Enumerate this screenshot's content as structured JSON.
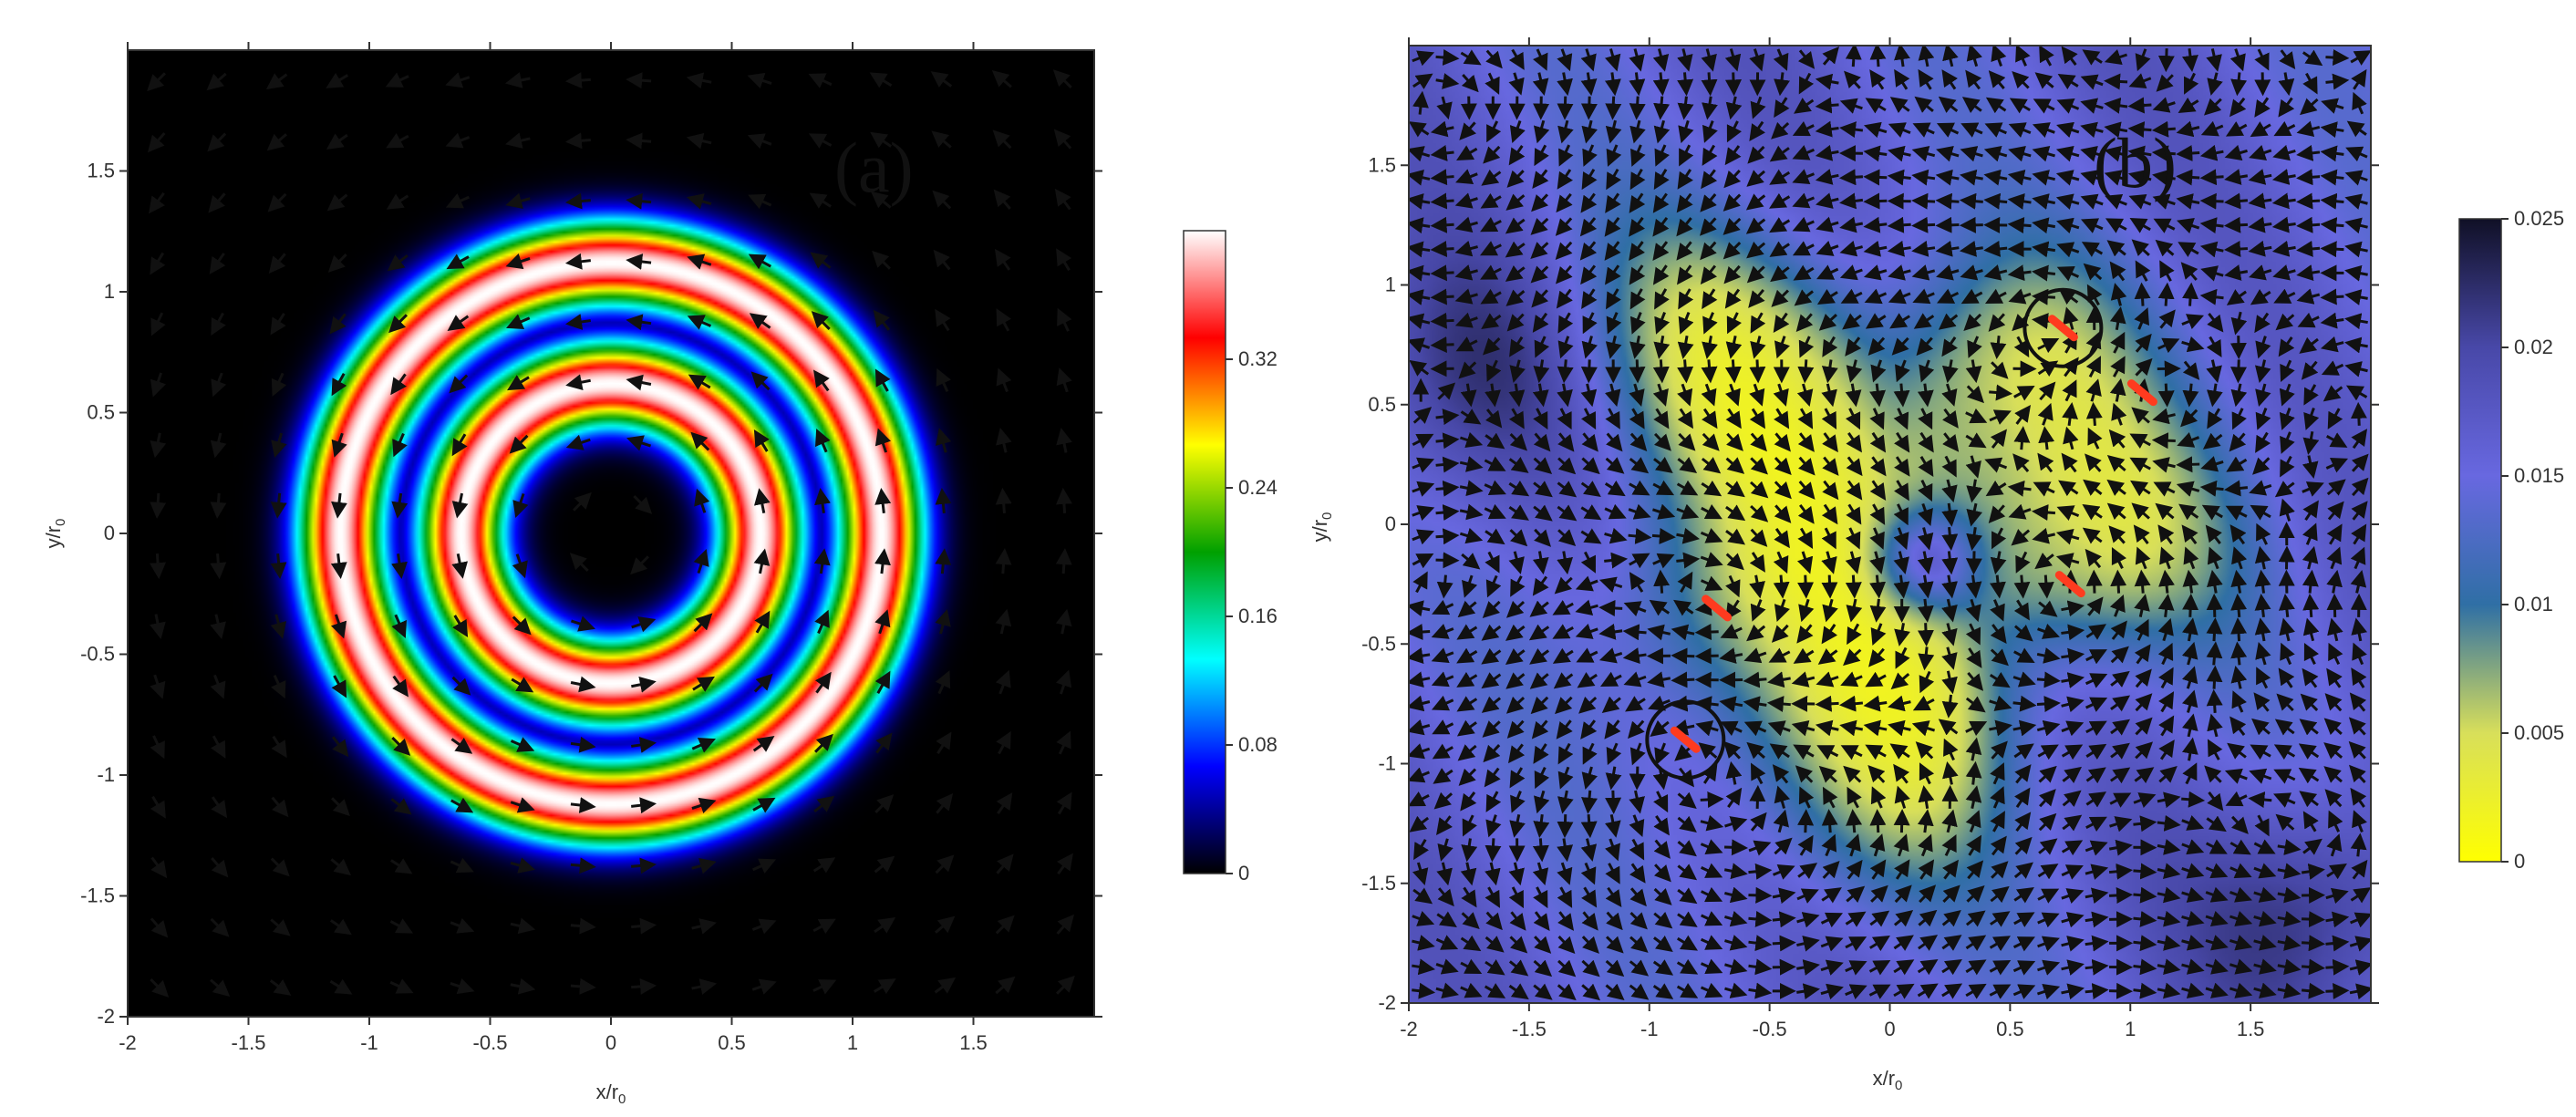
{
  "chart_data": [
    {
      "type": "heatmap",
      "panel_label": "(a)",
      "xlabel": "x/r",
      "xlabel_sub": "0",
      "ylabel": "y/r",
      "ylabel_sub": "0",
      "xlim": [
        -2,
        2
      ],
      "ylim": [
        -2,
        2
      ],
      "x_ticks": [
        -2,
        -1.5,
        -1,
        -0.5,
        0,
        0.5,
        1,
        1.5
      ],
      "x_tick_labels": [
        "-2",
        "-1.5",
        "-1",
        "-0.5",
        "0",
        "0.5",
        "1",
        "1.5"
      ],
      "y_ticks": [
        -2,
        -1.5,
        -1,
        -0.5,
        0,
        0.5,
        1,
        1.5
      ],
      "y_tick_labels": [
        "-2",
        "-1.5",
        "-1",
        "-0.5",
        "0",
        "0.5",
        "1",
        "1.5"
      ],
      "colorbar": {
        "range": [
          0,
          0.4
        ],
        "ticks": [
          0,
          0.08,
          0.16,
          0.24,
          0.32
        ],
        "tick_labels": [
          "0",
          "0.08",
          "0.16",
          "0.24",
          "0.32"
        ],
        "colormap": [
          "#000000",
          "#0000ff",
          "#00ffff",
          "#00a000",
          "#ffff00",
          "#ff0000",
          "#ffffff"
        ]
      },
      "field": {
        "description_type": "concentric rings",
        "ring_peaks_r": [
          0.62,
          1.12
        ],
        "ring_width": 0.17,
        "ring_amplitude": 0.4,
        "rotation": "counterclockwise",
        "vector_grid_step": 0.25
      }
    },
    {
      "type": "heatmap",
      "panel_label": "(b)",
      "xlabel": "x/r",
      "xlabel_sub": "0",
      "ylabel": "y/r",
      "ylabel_sub": "0",
      "xlim": [
        -2,
        2
      ],
      "ylim": [
        -2,
        2
      ],
      "x_ticks": [
        -2,
        -1.5,
        -1,
        -0.5,
        0,
        0.5,
        1,
        1.5
      ],
      "x_tick_labels": [
        "-2",
        "-1.5",
        "-1",
        "-0.5",
        "0",
        "0.5",
        "1",
        "1.5"
      ],
      "y_ticks": [
        -2,
        -1.5,
        -1,
        -0.5,
        0,
        0.5,
        1,
        1.5
      ],
      "y_tick_labels": [
        "-2",
        "-1.5",
        "-1",
        "-0.5",
        "0",
        "0.5",
        "1",
        "1.5"
      ],
      "colorbar": {
        "range": [
          0,
          0.025
        ],
        "ticks": [
          0,
          0.005,
          0.01,
          0.015,
          0.02,
          0.025
        ],
        "tick_labels": [
          "0",
          "0.005",
          "0.01",
          "0.015",
          "0.02",
          "0.025"
        ],
        "colormap": [
          "#ffff00",
          "#d8df5a",
          "#2f6fa5",
          "#6868e0",
          "#4848a8",
          "#101026"
        ]
      },
      "field": {
        "description_type": "irregular low-intensity region with central hole",
        "low_region_radius": 1.15,
        "central_hole": {
          "x": 0.15,
          "y": -0.15,
          "r": 0.22
        },
        "vortices": [
          {
            "x": 0.72,
            "y": 0.82,
            "circled": true
          },
          {
            "x": 1.05,
            "y": 0.55,
            "circled": false
          },
          {
            "x": 0.75,
            "y": -0.25,
            "circled": false
          },
          {
            "x": -0.72,
            "y": -0.35,
            "circled": false
          },
          {
            "x": -0.85,
            "y": -0.9,
            "circled": true
          }
        ],
        "vector_grid_step": 0.1
      }
    }
  ]
}
